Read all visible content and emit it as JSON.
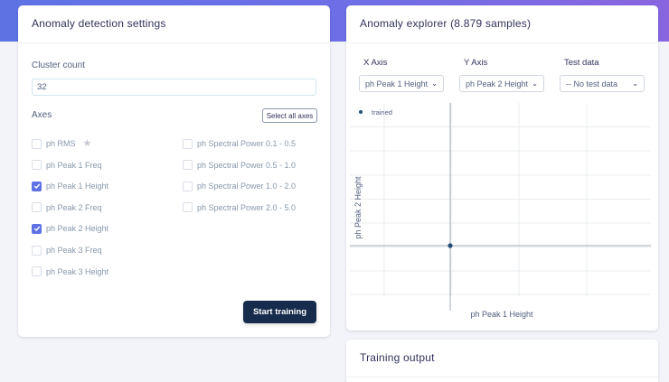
{
  "settings": {
    "title": "Anomaly detection settings",
    "cluster_label": "Cluster count",
    "cluster_value": "32",
    "axes_label": "Axes",
    "select_all_label": "Select all axes",
    "start_label": "Start training",
    "axes_col1": [
      {
        "label": "ph RMS",
        "checked": false,
        "star": true
      },
      {
        "label": "ph Peak 1 Freq",
        "checked": false
      },
      {
        "label": "ph Peak 1 Height",
        "checked": true
      },
      {
        "label": "ph Peak 2 Freq",
        "checked": false
      },
      {
        "label": "ph Peak 2 Height",
        "checked": true
      },
      {
        "label": "ph Peak 3 Freq",
        "checked": false
      },
      {
        "label": "ph Peak 3 Height",
        "checked": false
      }
    ],
    "axes_col2": [
      {
        "label": "ph Spectral Power 0.1 - 0.5",
        "checked": false
      },
      {
        "label": "ph Spectral Power 0.5 - 1.0",
        "checked": false
      },
      {
        "label": "ph Spectral Power 1.0 - 2.0",
        "checked": false
      },
      {
        "label": "ph Spectral Power 2.0 - 5.0",
        "checked": false
      }
    ]
  },
  "explorer": {
    "title": "Anomaly explorer (8.879 samples)",
    "x_axis_label": "X Axis",
    "y_axis_label": "Y Axis",
    "test_data_label": "Test data",
    "x_axis_value": "ph Peak 1 Height",
    "y_axis_value": "ph Peak 2 Height",
    "test_data_value": "-- No test data"
  },
  "chart_data": {
    "type": "scatter",
    "xlabel": "ph Peak 1 Height",
    "ylabel": "ph Peak 2 Height",
    "legend": "top-left",
    "grid": true,
    "series": [
      {
        "name": "trained",
        "color": "#1f4e79",
        "points": [
          [
            0,
            0
          ]
        ]
      }
    ]
  },
  "output": {
    "title": "Training output"
  },
  "colors": {
    "accent": "#5e72e4",
    "dark_button": "#172b4d",
    "point": "#1f4e79"
  }
}
